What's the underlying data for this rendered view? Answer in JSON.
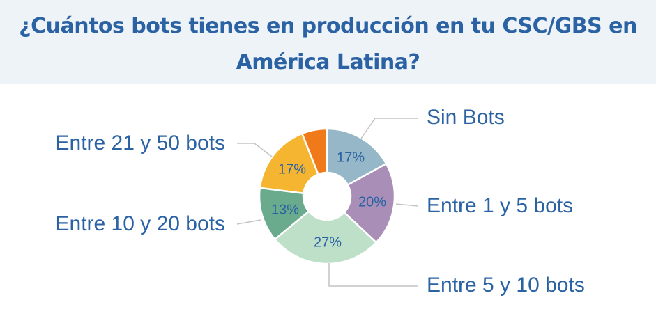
{
  "title": "¿Cuántos bots tienes en producción en tu CSC/GBS en América Latina?",
  "chart_data": {
    "type": "pie",
    "title": "¿Cuántos bots tienes en producción en tu CSC/GBS en América Latina?",
    "slices": [
      {
        "label": "Sin Bots",
        "value": 17,
        "value_label": "17%",
        "color": "#96b7c8"
      },
      {
        "label": "Entre 1 y 5 bots",
        "value": 20,
        "value_label": "20%",
        "color": "#a98fb8"
      },
      {
        "label": "Entre 5 y 10 bots",
        "value": 27,
        "value_label": "27%",
        "color": "#bfe0c8"
      },
      {
        "label": "Entre 10 y 20 bots",
        "value": 13,
        "value_label": "13%",
        "color": "#6aab8e"
      },
      {
        "label": "Entre 21 y 50 bots",
        "value": 17,
        "value_label": "17%",
        "color": "#f5b530"
      },
      {
        "label": "",
        "value": 6,
        "value_label": "",
        "color": "#f07a1a"
      }
    ],
    "text_color": "#2a62a3"
  }
}
